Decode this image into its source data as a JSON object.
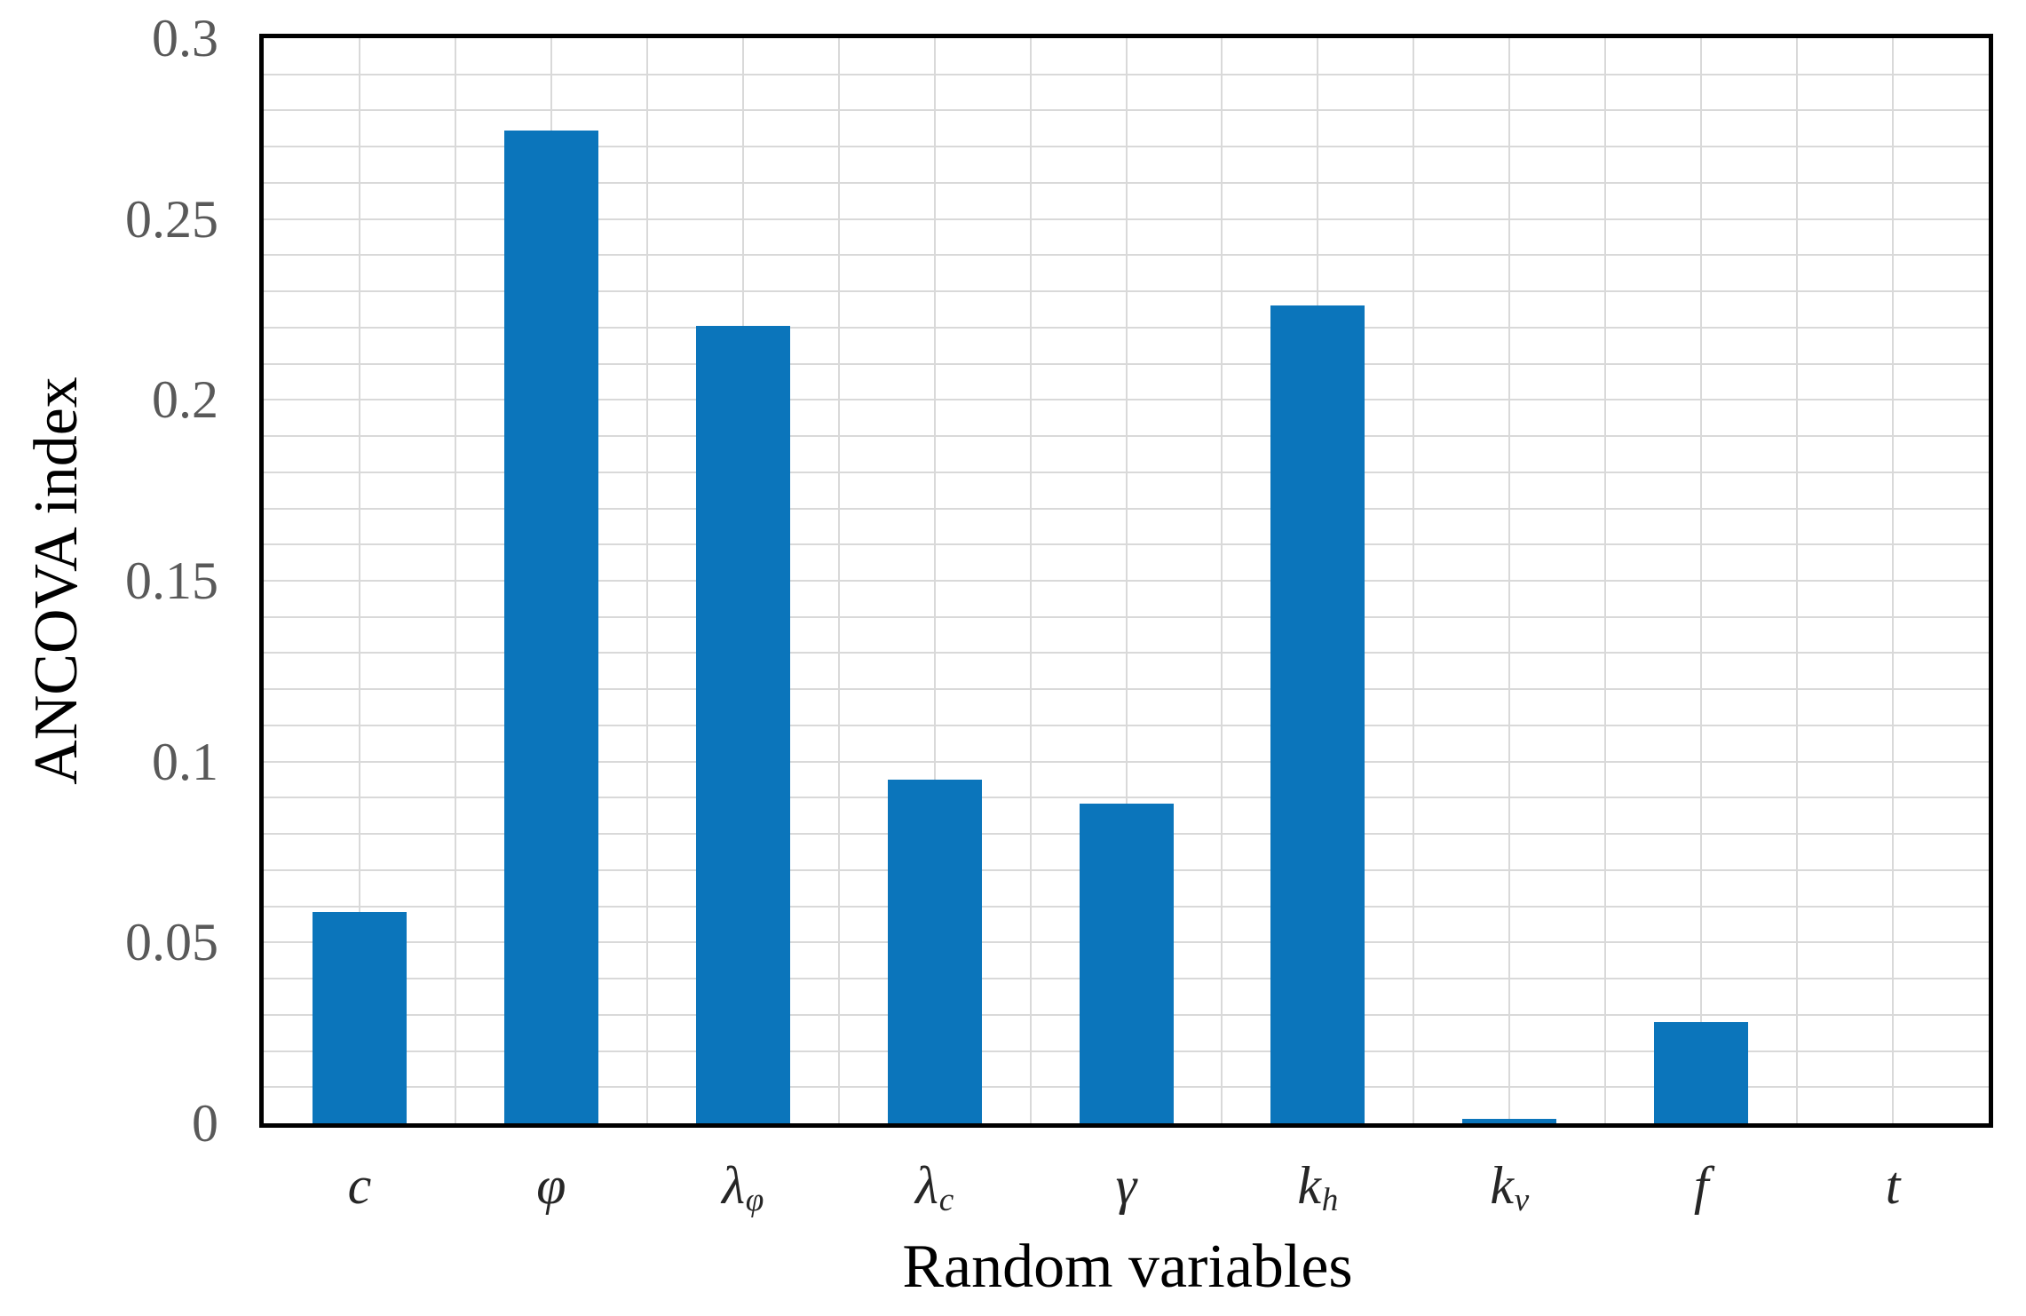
{
  "chart_data": {
    "type": "bar",
    "title": "",
    "xlabel": "Random variables",
    "ylabel": "ANCOVA index",
    "categories": [
      "c",
      "φ",
      "λφ",
      "λc",
      "γ",
      "kh",
      "kv",
      "f",
      "t"
    ],
    "category_labels": [
      {
        "main": "c",
        "sub": ""
      },
      {
        "main": "φ",
        "sub": ""
      },
      {
        "main": "λ",
        "sub": "φ"
      },
      {
        "main": "λ",
        "sub": "c"
      },
      {
        "main": "γ",
        "sub": ""
      },
      {
        "main": "k",
        "sub": "h"
      },
      {
        "main": "k",
        "sub": "v"
      },
      {
        "main": "f",
        "sub": ""
      },
      {
        "main": "t",
        "sub": ""
      }
    ],
    "values": [
      0.0585,
      0.2745,
      0.2205,
      0.095,
      0.0885,
      0.226,
      0.0012,
      0.028,
      0
    ],
    "ylim": [
      0,
      0.3
    ],
    "ytick_values": [
      0,
      0.05,
      0.1,
      0.15,
      0.2,
      0.25,
      0.3
    ],
    "ytick_labels": [
      "0",
      "0.05",
      "0.1",
      "0.15",
      "0.2",
      "0.25",
      "0.3"
    ],
    "grid": {
      "show": true,
      "y_minor_step": 0.01,
      "x_divisions_per_category": 2,
      "color": "#D9D9D9"
    },
    "legend_position": "none",
    "bar_color": "#0B75BB",
    "axis_border_color": "#000000",
    "ytick_color": "#595959",
    "xtick_color": "#262626",
    "axis_title_color": "#000000",
    "background_color": "#FFFFFF"
  }
}
